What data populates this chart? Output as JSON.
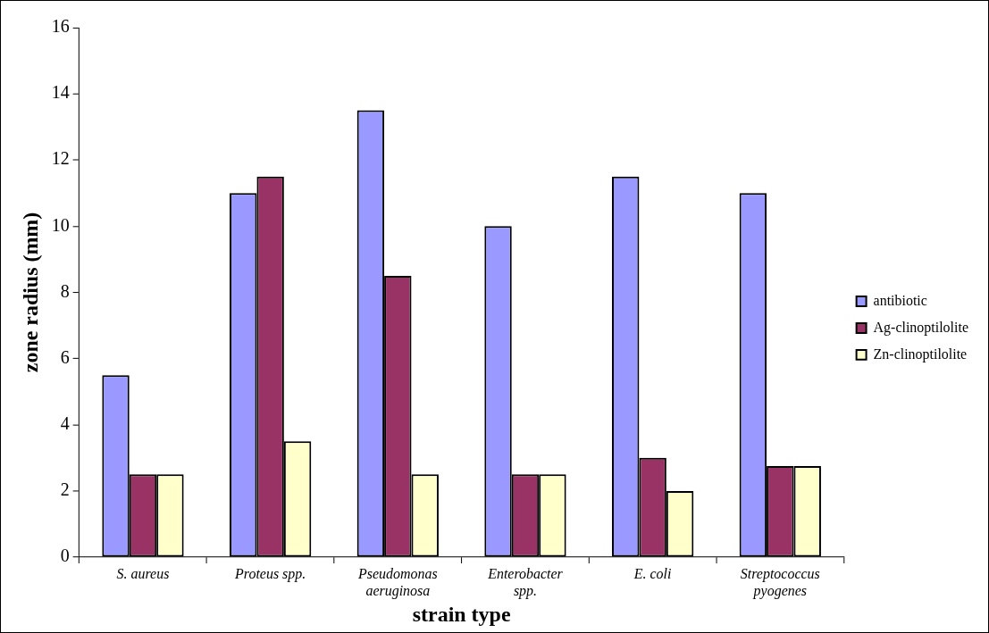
{
  "chart_data": {
    "type": "bar",
    "xlabel": "strain type",
    "ylabel": "zone radius (mm)",
    "categories": [
      "S. aureus",
      "Proteus spp.",
      "Pseudomonas aeruginosa",
      "Enterobacter spp.",
      "E. coli",
      "Streptococcus pyogenes"
    ],
    "series": [
      {
        "name": "antibiotic",
        "color": "#9999ff",
        "values": [
          5.5,
          11,
          13.5,
          10,
          11.5,
          11
        ]
      },
      {
        "name": "Ag-clinoptilolite",
        "color": "#993366",
        "values": [
          2.5,
          11.5,
          8.5,
          2.5,
          3,
          2.75
        ]
      },
      {
        "name": "Zn-clinoptilolite",
        "color": "#ffffcc",
        "values": [
          2.5,
          3.5,
          2.5,
          2.5,
          2,
          2.75
        ]
      }
    ],
    "ylim": [
      0,
      16
    ],
    "yticks": [
      0,
      2,
      4,
      6,
      8,
      10,
      12,
      14,
      16
    ],
    "grid": false,
    "legend": "right"
  }
}
